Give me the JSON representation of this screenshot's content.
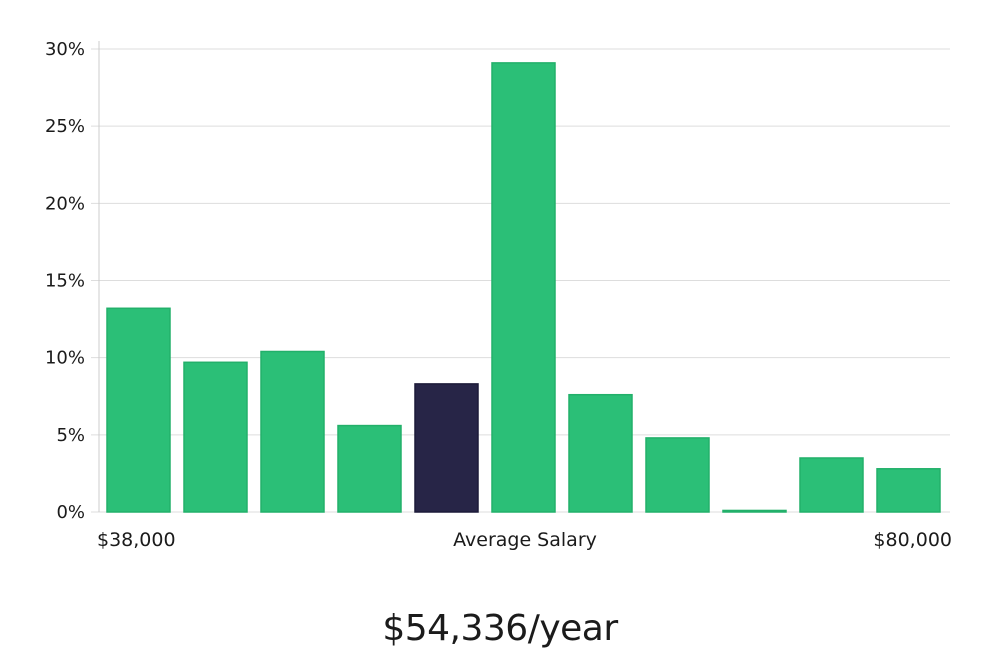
{
  "chart_data": {
    "type": "bar",
    "title": "",
    "xlabel": "",
    "ylabel": "",
    "ylim": [
      0,
      30
    ],
    "yticks": [
      0,
      5,
      10,
      15,
      20,
      25,
      30
    ],
    "ytick_suffix": "%",
    "grid": true,
    "x_labels": {
      "min": "$38,000",
      "middle": "Average Salary",
      "max": "$80,000"
    },
    "values": [
      13.2,
      9.7,
      10.4,
      5.6,
      8.3,
      29.1,
      7.6,
      4.8,
      0.1,
      3.5,
      2.8
    ],
    "highlight_index": 4,
    "colors": {
      "bar": "#2bbf77",
      "bar_stroke": "#22b06a",
      "highlight": "#272547",
      "grid": "#dddddd",
      "axis": "#cccccc"
    }
  },
  "salary_text": "$54,336/year"
}
